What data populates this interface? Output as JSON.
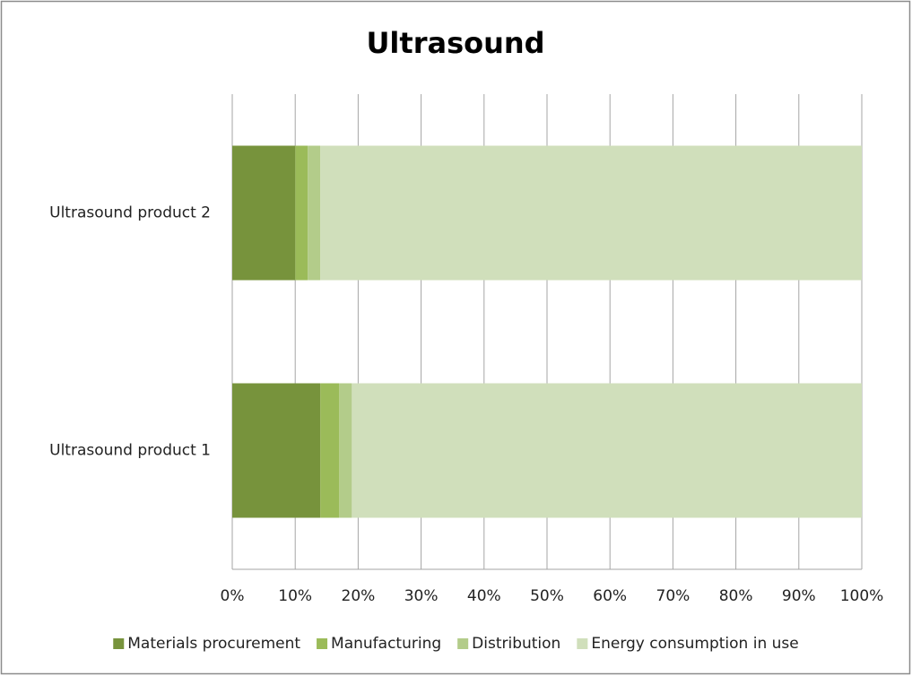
{
  "chart_data": {
    "type": "stacked_barh",
    "title": "Ultrasound",
    "categories": [
      "Ultrasound product 1",
      "Ultrasound product 2"
    ],
    "series": [
      {
        "name": "Materials procurement",
        "color": "#77933c",
        "values": [
          14,
          10
        ]
      },
      {
        "name": "Manufacturing",
        "color": "#9bbb59",
        "values": [
          3,
          2
        ]
      },
      {
        "name": "Distribution",
        "color": "#b3cc8a",
        "values": [
          2,
          2
        ]
      },
      {
        "name": "Energy consumption in use",
        "color": "#d0dfbb",
        "values": [
          81,
          86
        ]
      }
    ],
    "xlim": [
      0,
      100
    ],
    "xticks": [
      {
        "value": 0,
        "label": "0%"
      },
      {
        "value": 10,
        "label": "10%"
      },
      {
        "value": 20,
        "label": "20%"
      },
      {
        "value": 30,
        "label": "30%"
      },
      {
        "value": 40,
        "label": "40%"
      },
      {
        "value": 50,
        "label": "50%"
      },
      {
        "value": 60,
        "label": "60%"
      },
      {
        "value": 70,
        "label": "70%"
      },
      {
        "value": 80,
        "label": "80%"
      },
      {
        "value": 90,
        "label": "90%"
      },
      {
        "value": 100,
        "label": "100%"
      }
    ],
    "grid": true,
    "legend": "bottom"
  }
}
